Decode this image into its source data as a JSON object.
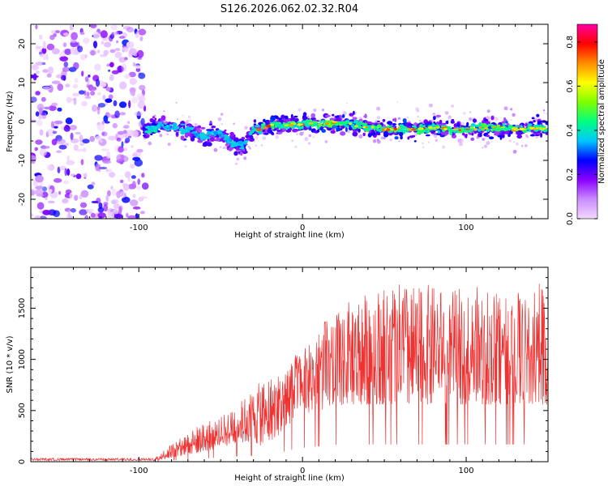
{
  "title": "S126.2026.062.02.32.R04",
  "chart_data": [
    {
      "type": "heatmap",
      "name": "spectrogram",
      "xlabel": "Height of straight line (km)",
      "ylabel": "Frequency (Hz)",
      "xlim": [
        -166,
        150
      ],
      "ylim": [
        -25,
        25
      ],
      "xticks": [
        -100,
        0,
        100
      ],
      "yticks": [
        -20,
        -10,
        0,
        10,
        20
      ],
      "colorbar": {
        "label": "Normalized spectral amplitude",
        "range": [
          0,
          0.88
        ],
        "ticks": [
          "0.0",
          "0.2",
          "0.4",
          "0.6",
          "0.8"
        ],
        "tick_values": [
          0,
          0.2,
          0.4,
          0.6,
          0.8
        ],
        "colors": [
          "#f2d9ff",
          "#c98cff",
          "#8a00ff",
          "#0000ff",
          "#00c8ff",
          "#00ff7f",
          "#7fff00",
          "#ffff00",
          "#ff8c00",
          "#ff0000",
          "#ff00a0"
        ]
      },
      "noise_region_x": [
        -166,
        -96
      ],
      "signal_track": {
        "x": [
          -97,
          -90,
          -85,
          -80,
          -75,
          -70,
          -65,
          -60,
          -55,
          -50,
          -45,
          -40,
          -35,
          -30,
          -25,
          -20,
          -10,
          0,
          10,
          20,
          30,
          40,
          50,
          60,
          70,
          80,
          90,
          100,
          110,
          120,
          130,
          140,
          150
        ],
        "freq": [
          -2,
          -1.5,
          -1,
          -1.5,
          -2,
          -2,
          -3,
          -4,
          -3,
          -3,
          -5,
          -6,
          -6,
          -2,
          -2,
          -1,
          -1,
          -0.5,
          -0.5,
          -0.5,
          -0.5,
          -1.5,
          -2,
          -2,
          -2,
          -1.5,
          -2,
          -2,
          -1.5,
          -1.5,
          -2,
          -1.5,
          -2
        ],
        "amplitude": [
          0.4,
          0.45,
          0.35,
          0.3,
          0.3,
          0.3,
          0.25,
          0.35,
          0.25,
          0.2,
          0.3,
          0.35,
          0.35,
          0.45,
          0.6,
          0.7,
          0.65,
          0.6,
          0.75,
          0.85,
          0.55,
          0.7,
          0.65,
          0.7,
          0.7,
          0.65,
          0.7,
          0.6,
          0.75,
          0.85,
          0.6,
          0.55,
          0.5
        ]
      }
    },
    {
      "type": "line",
      "name": "snr",
      "xlabel": "Height of straight line (km)",
      "ylabel": "SNR (10 * v/v)",
      "xlim": [
        -166,
        150
      ],
      "ylim": [
        0,
        1900
      ],
      "xticks": [
        -100,
        0,
        100
      ],
      "yticks": [
        0,
        500,
        1000,
        1500
      ],
      "line_color": "#ee3333",
      "envelope": {
        "x": [
          -166,
          -90,
          -80,
          -70,
          -60,
          -50,
          -40,
          -30,
          -25,
          -15,
          -10,
          0,
          10,
          20,
          30,
          40,
          50,
          60,
          70,
          80,
          90,
          100,
          110,
          120,
          130,
          140,
          145,
          150
        ],
        "base": [
          10,
          10,
          40,
          70,
          100,
          140,
          180,
          200,
          150,
          250,
          350,
          450,
          500,
          550,
          560,
          560,
          560,
          560,
          560,
          560,
          560,
          560,
          560,
          560,
          560,
          560,
          560,
          560
        ],
        "peak": [
          40,
          40,
          180,
          300,
          380,
          440,
          560,
          700,
          800,
          850,
          950,
          1150,
          1350,
          1450,
          1600,
          1650,
          1700,
          1750,
          1700,
          1750,
          1680,
          1700,
          1720,
          1650,
          1700,
          1600,
          1800,
          1750
        ]
      }
    }
  ]
}
